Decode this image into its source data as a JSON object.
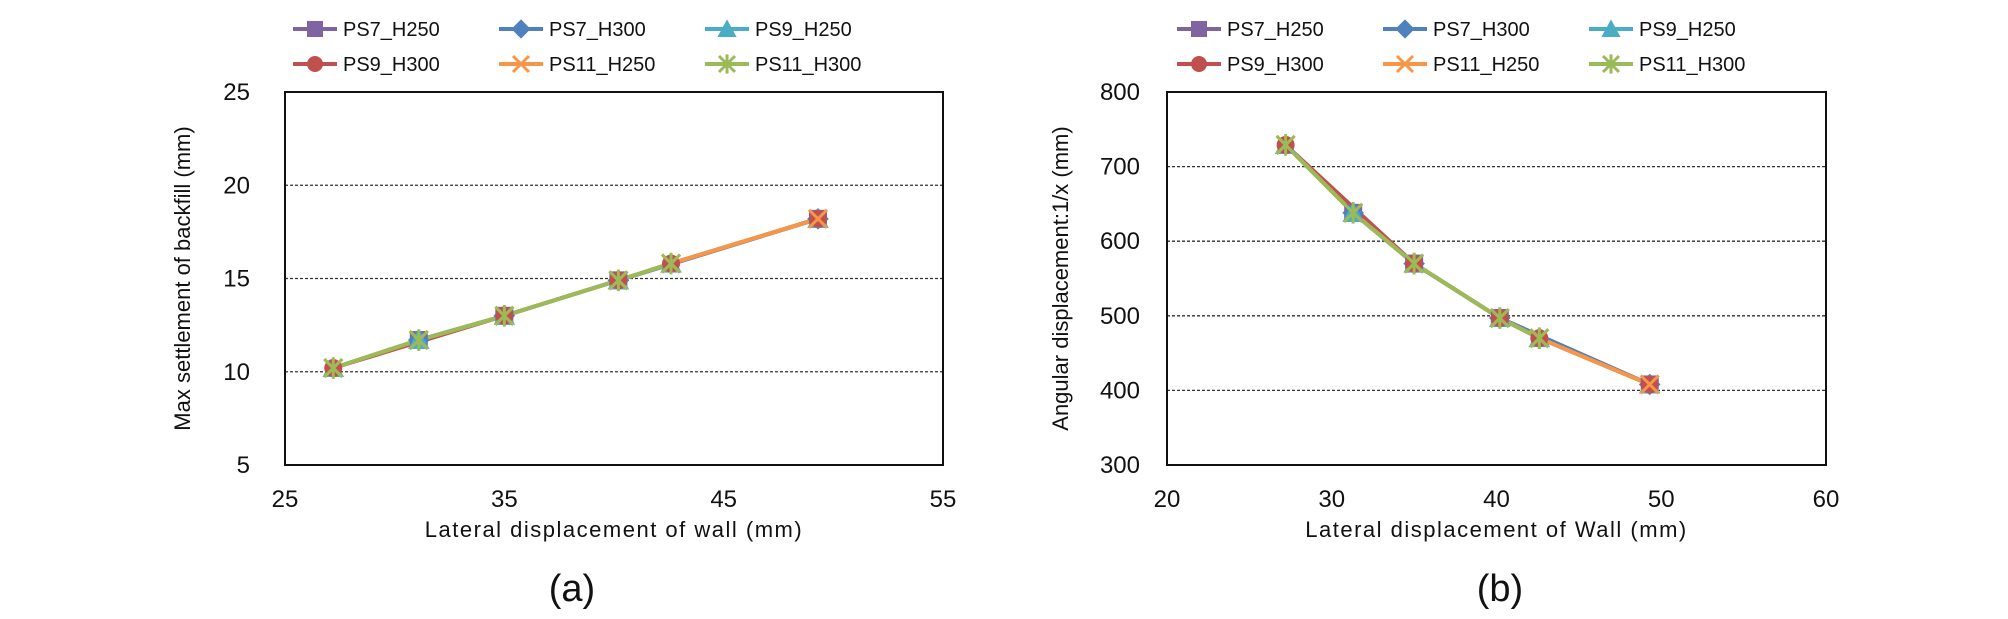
{
  "series_styles": [
    {
      "name": "PS7_H250",
      "color": "#8064a2",
      "marker": "square"
    },
    {
      "name": "PS7_H300",
      "color": "#4f81bd",
      "marker": "diamond"
    },
    {
      "name": "PS9_H250",
      "color": "#4bacc6",
      "marker": "triangle"
    },
    {
      "name": "PS9_H300",
      "color": "#c0504d",
      "marker": "circle"
    },
    {
      "name": "PS11_H250",
      "color": "#f79646",
      "marker": "x"
    },
    {
      "name": "PS11_H300",
      "color": "#9bbb59",
      "marker": "star"
    }
  ],
  "chart_data": [
    {
      "type": "line",
      "caption": "(a)",
      "xlabel": "Lateral displacement of wall (mm)",
      "ylabel": "Max settlement of backfill (mm)",
      "xlim": [
        25,
        55
      ],
      "ylim": [
        5,
        25
      ],
      "xticks": [
        "25",
        "35",
        "45",
        "55"
      ],
      "yticks": [
        "5",
        "10",
        "15",
        "20",
        "25"
      ],
      "grid": "horizontal",
      "series": [
        {
          "name": "PS7_H250",
          "x": [
            31.1,
            35.0,
            40.2,
            49.3
          ],
          "y": [
            11.7,
            13.0,
            14.9,
            18.2
          ]
        },
        {
          "name": "PS7_H300",
          "x": [
            31.1,
            35.0,
            40.2,
            49.3
          ],
          "y": [
            11.7,
            13.0,
            14.9,
            18.2
          ]
        },
        {
          "name": "PS9_H250",
          "x": [
            27.2,
            31.1,
            35.0,
            40.2,
            42.6,
            49.3
          ],
          "y": [
            10.2,
            11.7,
            13.0,
            14.9,
            15.8,
            18.2
          ]
        },
        {
          "name": "PS9_H300",
          "x": [
            27.2,
            35.0,
            40.2,
            42.6,
            49.3
          ],
          "y": [
            10.2,
            13.0,
            14.9,
            15.8,
            18.2
          ]
        },
        {
          "name": "PS11_H250",
          "x": [
            27.2,
            31.1,
            35.0,
            40.2,
            42.6,
            49.3
          ],
          "y": [
            10.2,
            11.7,
            13.0,
            14.9,
            15.8,
            18.2
          ]
        },
        {
          "name": "PS11_H300",
          "x": [
            27.2,
            31.1,
            35.0,
            40.2,
            42.6
          ],
          "y": [
            10.2,
            11.7,
            13.0,
            14.9,
            15.8
          ]
        }
      ]
    },
    {
      "type": "line",
      "caption": "(b)",
      "xlabel": "Lateral displacement of Wall (mm)",
      "ylabel": "Angular displacement:1/x (mm)",
      "xlim": [
        20,
        60
      ],
      "ylim": [
        300,
        800
      ],
      "xticks": [
        "20",
        "30",
        "40",
        "50",
        "60"
      ],
      "yticks": [
        "300",
        "400",
        "500",
        "600",
        "700",
        "800"
      ],
      "grid": "horizontal",
      "series": [
        {
          "name": "PS7_H250",
          "x": [
            31.3,
            35.0,
            40.2,
            49.3
          ],
          "y": [
            638,
            570,
            497,
            408
          ]
        },
        {
          "name": "PS7_H300",
          "x": [
            31.3,
            35.0,
            40.2,
            49.3
          ],
          "y": [
            638,
            570,
            497,
            408
          ]
        },
        {
          "name": "PS9_H250",
          "x": [
            27.2,
            31.3,
            35.0,
            40.2,
            42.6,
            49.3
          ],
          "y": [
            729,
            638,
            570,
            497,
            470,
            408
          ]
        },
        {
          "name": "PS9_H300",
          "x": [
            27.2,
            35.0,
            40.2,
            42.6,
            49.3
          ],
          "y": [
            729,
            570,
            497,
            470,
            408
          ]
        },
        {
          "name": "PS11_H250",
          "x": [
            27.2,
            31.3,
            35.0,
            40.2,
            42.6,
            49.3
          ],
          "y": [
            729,
            638,
            570,
            497,
            470,
            408
          ]
        },
        {
          "name": "PS11_H300",
          "x": [
            27.2,
            31.3,
            35.0,
            40.2,
            42.6
          ],
          "y": [
            729,
            638,
            570,
            497,
            470
          ]
        }
      ]
    }
  ]
}
